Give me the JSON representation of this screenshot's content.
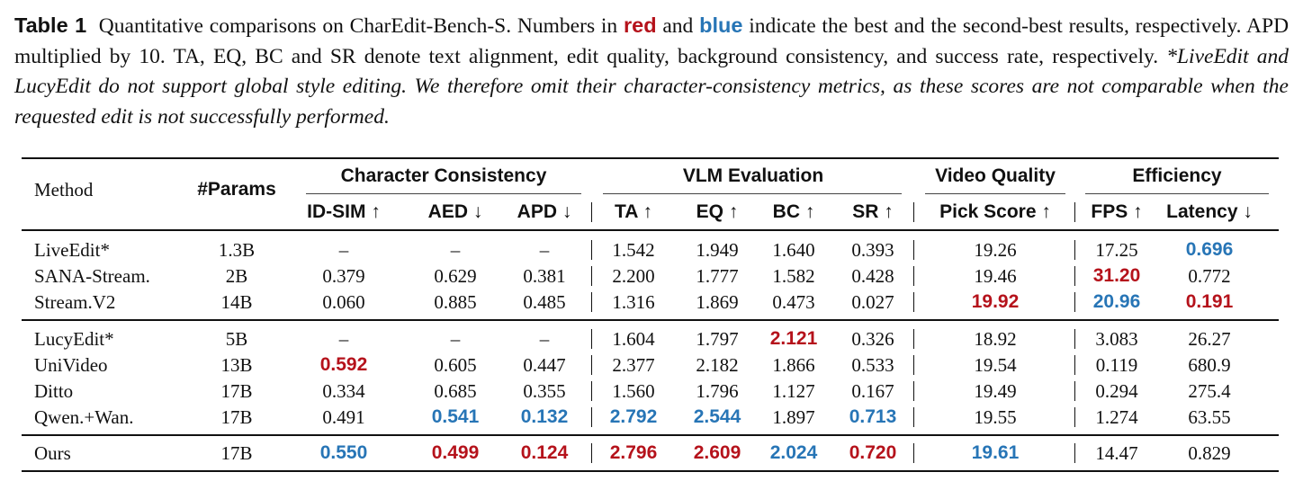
{
  "caption": {
    "label": "Table 1",
    "text_1": "Quantitative comparisons on CharEdit-Bench-S. Numbers in",
    "red_word": "red",
    "text_2": "and",
    "blue_word": "blue",
    "text_3": "indicate the best and the second-best results, respectively. APD multiplied by 10. TA, EQ, BC and SR denote text alignment, edit quality, background consistency, and success rate, respectively.",
    "note": "*LiveEdit and LucyEdit do not support global style editing. We therefore omit their character-consistency metrics, as these scores are not comparable when the requested edit is not successfully performed.",
    "best_color": "#b5121b",
    "second_color": "#2775b6"
  },
  "table": {
    "method_header": "Method",
    "params_header": "#Params",
    "groups": [
      "Character Consistency",
      "VLM Evaluation",
      "Video Quality",
      "Efficiency"
    ],
    "columns": [
      "ID-SIM ↑",
      "AED ↓",
      "APD ↓",
      "TA ↑",
      "EQ ↑",
      "BC ↑",
      "SR ↑",
      "Pick Score ↑",
      "FPS ↑",
      "Latency ↓"
    ],
    "rows": [
      {
        "method": "LiveEdit*",
        "params": "1.3B",
        "cells": [
          {
            "v": "–"
          },
          {
            "v": "–"
          },
          {
            "v": "–"
          },
          {
            "v": "1.542"
          },
          {
            "v": "1.949"
          },
          {
            "v": "1.640"
          },
          {
            "v": "0.393"
          },
          {
            "v": "19.26"
          },
          {
            "v": "17.25"
          },
          {
            "v": "0.696",
            "rank": "second"
          }
        ]
      },
      {
        "method": "SANA-Stream.",
        "params": "2B",
        "cells": [
          {
            "v": "0.379"
          },
          {
            "v": "0.629"
          },
          {
            "v": "0.381"
          },
          {
            "v": "2.200"
          },
          {
            "v": "1.777"
          },
          {
            "v": "1.582"
          },
          {
            "v": "0.428"
          },
          {
            "v": "19.46"
          },
          {
            "v": "31.20",
            "rank": "best"
          },
          {
            "v": "0.772"
          }
        ]
      },
      {
        "method": "Stream.V2",
        "params": "14B",
        "cells": [
          {
            "v": "0.060"
          },
          {
            "v": "0.885"
          },
          {
            "v": "0.485"
          },
          {
            "v": "1.316"
          },
          {
            "v": "1.869"
          },
          {
            "v": "0.473"
          },
          {
            "v": "0.027"
          },
          {
            "v": "19.92",
            "rank": "best"
          },
          {
            "v": "20.96",
            "rank": "second"
          },
          {
            "v": "0.191",
            "rank": "best"
          }
        ]
      },
      {
        "method": "LucyEdit*",
        "params": "5B",
        "cells": [
          {
            "v": "–"
          },
          {
            "v": "–"
          },
          {
            "v": "–"
          },
          {
            "v": "1.604"
          },
          {
            "v": "1.797"
          },
          {
            "v": "2.121",
            "rank": "best"
          },
          {
            "v": "0.326"
          },
          {
            "v": "18.92"
          },
          {
            "v": "3.083"
          },
          {
            "v": "26.27"
          }
        ]
      },
      {
        "method": "UniVideo",
        "params": "13B",
        "cells": [
          {
            "v": "0.592",
            "rank": "best"
          },
          {
            "v": "0.605"
          },
          {
            "v": "0.447"
          },
          {
            "v": "2.377"
          },
          {
            "v": "2.182"
          },
          {
            "v": "1.866"
          },
          {
            "v": "0.533"
          },
          {
            "v": "19.54"
          },
          {
            "v": "0.119"
          },
          {
            "v": "680.9"
          }
        ]
      },
      {
        "method": "Ditto",
        "params": "17B",
        "cells": [
          {
            "v": "0.334"
          },
          {
            "v": "0.685"
          },
          {
            "v": "0.355"
          },
          {
            "v": "1.560"
          },
          {
            "v": "1.796"
          },
          {
            "v": "1.127"
          },
          {
            "v": "0.167"
          },
          {
            "v": "19.49"
          },
          {
            "v": "0.294"
          },
          {
            "v": "275.4"
          }
        ]
      },
      {
        "method": "Qwen.+Wan.",
        "params": "17B",
        "cells": [
          {
            "v": "0.491"
          },
          {
            "v": "0.541",
            "rank": "second"
          },
          {
            "v": "0.132",
            "rank": "second"
          },
          {
            "v": "2.792",
            "rank": "second"
          },
          {
            "v": "2.544",
            "rank": "second"
          },
          {
            "v": "1.897"
          },
          {
            "v": "0.713",
            "rank": "second"
          },
          {
            "v": "19.55"
          },
          {
            "v": "1.274"
          },
          {
            "v": "63.55"
          }
        ]
      },
      {
        "method": "Ours",
        "params": "17B",
        "cells": [
          {
            "v": "0.550",
            "rank": "second"
          },
          {
            "v": "0.499",
            "rank": "best"
          },
          {
            "v": "0.124",
            "rank": "best"
          },
          {
            "v": "2.796",
            "rank": "best"
          },
          {
            "v": "2.609",
            "rank": "best"
          },
          {
            "v": "2.024",
            "rank": "second"
          },
          {
            "v": "0.720",
            "rank": "best"
          },
          {
            "v": "19.61",
            "rank": "second"
          },
          {
            "v": "14.47"
          },
          {
            "v": "0.829"
          }
        ]
      }
    ]
  }
}
